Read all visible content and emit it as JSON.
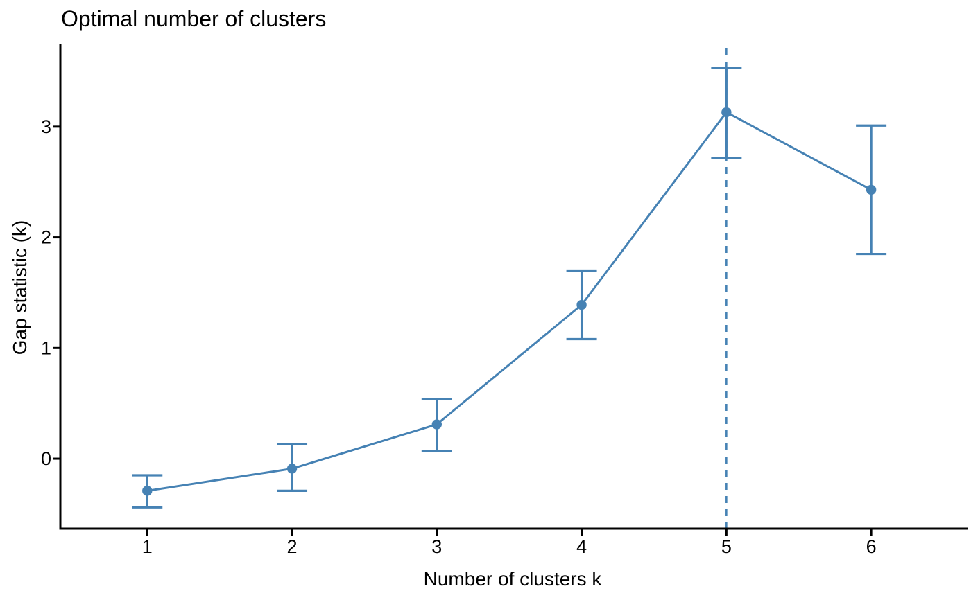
{
  "chart_data": {
    "type": "line",
    "title": "Optimal number of clusters",
    "xlabel": "Number of clusters k",
    "ylabel": "Gap statistic (k)",
    "x": [
      1,
      2,
      3,
      4,
      5,
      6
    ],
    "series": [
      {
        "name": "Gap statistic",
        "values": [
          -0.29,
          -0.09,
          0.31,
          1.39,
          3.13,
          2.43
        ],
        "ymin": [
          -0.44,
          -0.29,
          0.07,
          1.08,
          2.72,
          1.85
        ],
        "ymax": [
          -0.15,
          0.13,
          0.54,
          1.7,
          3.53,
          3.01
        ]
      }
    ],
    "optimal_k": 5,
    "vline": {
      "x": 5,
      "style": "dashed"
    },
    "x_ticks": [
      1,
      2,
      3,
      4,
      5,
      6
    ],
    "y_ticks": [
      0,
      1,
      2,
      3
    ],
    "xlim": [
      0.4,
      6.67
    ],
    "ylim": [
      -0.632,
      3.744
    ],
    "grid": false,
    "legend": "none",
    "colors": {
      "line": "#4682B4",
      "axis": "#000000",
      "text": "#000000"
    }
  }
}
